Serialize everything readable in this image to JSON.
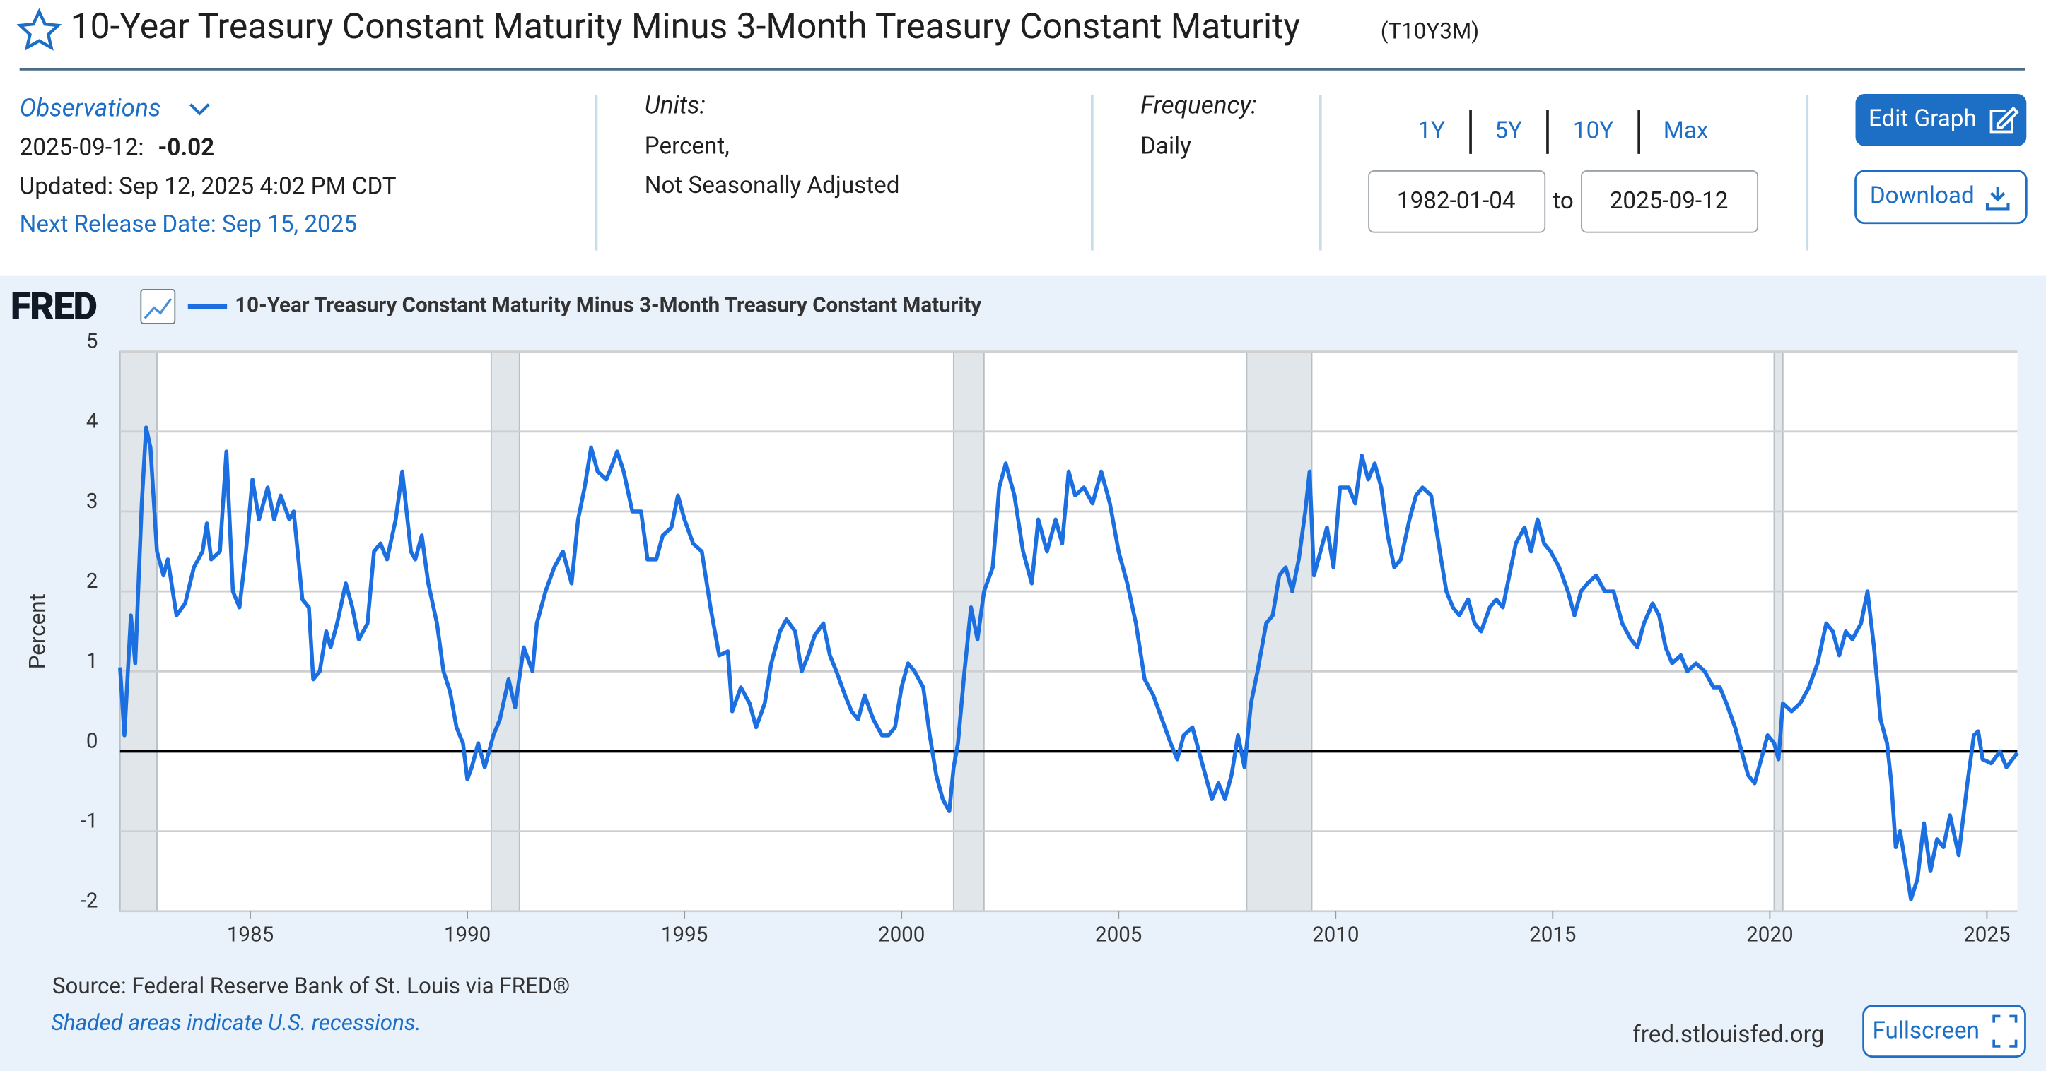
{
  "header": {
    "title": "10-Year Treasury Constant Maturity Minus 3-Month Treasury Constant Maturity",
    "series_id": "(T10Y3M)"
  },
  "observations": {
    "label": "Observations",
    "date": "2025-09-12:",
    "value": "-0.02",
    "updated": "Updated: Sep 12, 2025 4:02 PM CDT",
    "next_release": "Next Release Date: Sep 15, 2025"
  },
  "units": {
    "label": "Units:",
    "lines": [
      "Percent,",
      "Not Seasonally Adjusted"
    ]
  },
  "frequency": {
    "label": "Frequency:",
    "value": "Daily"
  },
  "range": {
    "buttons": [
      "1Y",
      "5Y",
      "10Y",
      "Max"
    ],
    "start": "1982-01-04",
    "to": "to",
    "end": "2025-09-12"
  },
  "actions": {
    "edit": "Edit Graph",
    "download": "Download",
    "fullscreen": "Fullscreen"
  },
  "footer": {
    "logo": "FRED",
    "source": "Source: Federal Reserve Bank of St. Louis via FRED®",
    "note": "Shaded areas indicate U.S. recessions.",
    "url": "fred.stlouisfed.org"
  },
  "chart_data": {
    "type": "line",
    "ylabel": "Percent",
    "xlim": [
      1982.0,
      2025.7
    ],
    "xticks": [
      1985,
      1990,
      1995,
      2000,
      2005,
      2010,
      2015,
      2020,
      2025
    ],
    "ylim": [
      -2,
      5
    ],
    "yticks": [
      -2,
      -1,
      0,
      1,
      2,
      3,
      4,
      5
    ],
    "grid": true,
    "zero_line": true,
    "recessions": [
      [
        1982.0,
        1982.85
      ],
      [
        1990.55,
        1991.2
      ],
      [
        2001.2,
        2001.9
      ],
      [
        2007.95,
        2009.45
      ],
      [
        2020.1,
        2020.3
      ]
    ],
    "recession_color": "#e1e6ea",
    "x": [
      1982.0,
      1982.1,
      1982.25,
      1982.35,
      1982.5,
      1982.6,
      1982.7,
      1982.85,
      1983.0,
      1983.1,
      1983.3,
      1983.5,
      1983.7,
      1983.9,
      1984.0,
      1984.1,
      1984.3,
      1984.45,
      1984.6,
      1984.75,
      1984.9,
      1985.05,
      1985.2,
      1985.4,
      1985.55,
      1985.7,
      1985.9,
      1986.0,
      1986.2,
      1986.35,
      1986.45,
      1986.6,
      1986.75,
      1986.85,
      1987.0,
      1987.2,
      1987.35,
      1987.5,
      1987.7,
      1987.85,
      1988.0,
      1988.15,
      1988.35,
      1988.5,
      1988.7,
      1988.8,
      1988.95,
      1989.1,
      1989.3,
      1989.45,
      1989.6,
      1989.75,
      1989.9,
      1990.0,
      1990.1,
      1990.25,
      1990.4,
      1990.6,
      1990.75,
      1990.95,
      1991.1,
      1991.3,
      1991.5,
      1991.6,
      1991.8,
      1992.0,
      1992.2,
      1992.4,
      1992.55,
      1992.7,
      1992.85,
      1993.0,
      1993.2,
      1993.35,
      1993.45,
      1993.6,
      1993.8,
      1994.0,
      1994.15,
      1994.35,
      1994.5,
      1994.7,
      1994.85,
      1995.0,
      1995.2,
      1995.4,
      1995.6,
      1995.8,
      1996.0,
      1996.1,
      1996.3,
      1996.5,
      1996.65,
      1996.85,
      1997.0,
      1997.2,
      1997.35,
      1997.55,
      1997.7,
      1997.85,
      1998.0,
      1998.2,
      1998.35,
      1998.5,
      1998.7,
      1998.85,
      1999.0,
      1999.15,
      1999.35,
      1999.55,
      1999.7,
      1999.85,
      2000.0,
      2000.15,
      2000.3,
      2000.5,
      2000.65,
      2000.8,
      2000.95,
      2001.1,
      2001.2,
      2001.3,
      2001.45,
      2001.6,
      2001.75,
      2001.9,
      2002.1,
      2002.25,
      2002.4,
      2002.6,
      2002.8,
      2003.0,
      2003.15,
      2003.35,
      2003.55,
      2003.7,
      2003.85,
      2004.0,
      2004.2,
      2004.4,
      2004.6,
      2004.8,
      2005.0,
      2005.2,
      2005.4,
      2005.6,
      2005.8,
      2006.0,
      2006.2,
      2006.35,
      2006.5,
      2006.7,
      2006.85,
      2007.0,
      2007.15,
      2007.3,
      2007.45,
      2007.6,
      2007.75,
      2007.9,
      2008.05,
      2008.2,
      2008.4,
      2008.55,
      2008.7,
      2008.85,
      2009.0,
      2009.15,
      2009.3,
      2009.4,
      2009.5,
      2009.65,
      2009.8,
      2009.95,
      2010.1,
      2010.3,
      2010.45,
      2010.6,
      2010.75,
      2010.9,
      2011.05,
      2011.2,
      2011.35,
      2011.5,
      2011.7,
      2011.85,
      2012.0,
      2012.2,
      2012.4,
      2012.55,
      2012.7,
      2012.85,
      2013.05,
      2013.2,
      2013.35,
      2013.55,
      2013.7,
      2013.85,
      2014.0,
      2014.15,
      2014.35,
      2014.5,
      2014.65,
      2014.8,
      2014.95,
      2015.15,
      2015.35,
      2015.5,
      2015.65,
      2015.8,
      2016.0,
      2016.2,
      2016.4,
      2016.6,
      2016.8,
      2016.95,
      2017.1,
      2017.3,
      2017.45,
      2017.6,
      2017.75,
      2017.95,
      2018.1,
      2018.3,
      2018.5,
      2018.7,
      2018.85,
      2019.0,
      2019.2,
      2019.35,
      2019.5,
      2019.65,
      2019.8,
      2019.95,
      2020.1,
      2020.2,
      2020.3,
      2020.5,
      2020.7,
      2020.9,
      2021.1,
      2021.3,
      2021.45,
      2021.6,
      2021.75,
      2021.9,
      2022.1,
      2022.25,
      2022.4,
      2022.55,
      2022.7,
      2022.8,
      2022.9,
      2023.0,
      2023.15,
      2023.25,
      2023.4,
      2023.55,
      2023.7,
      2023.85,
      2024.0,
      2024.15,
      2024.35,
      2024.55,
      2024.7,
      2024.8,
      2024.9,
      2025.1,
      2025.3,
      2025.45,
      2025.7
    ],
    "series": [
      {
        "name": "10-Year Treasury Constant Maturity Minus 3-Month Treasury Constant Maturity",
        "color": "#1b6fe0",
        "values": [
          1.05,
          0.2,
          1.7,
          1.1,
          3.1,
          4.05,
          3.8,
          2.5,
          2.2,
          2.4,
          1.7,
          1.85,
          2.3,
          2.5,
          2.85,
          2.4,
          2.5,
          3.75,
          2.0,
          1.8,
          2.5,
          3.4,
          2.9,
          3.3,
          2.9,
          3.2,
          2.9,
          3.0,
          1.9,
          1.8,
          0.9,
          1.0,
          1.5,
          1.3,
          1.6,
          2.1,
          1.8,
          1.4,
          1.6,
          2.5,
          2.6,
          2.4,
          2.9,
          3.5,
          2.5,
          2.4,
          2.7,
          2.1,
          1.6,
          1.0,
          0.75,
          0.3,
          0.1,
          -0.35,
          -0.2,
          0.1,
          -0.2,
          0.2,
          0.4,
          0.9,
          0.55,
          1.3,
          1.0,
          1.6,
          2.0,
          2.3,
          2.5,
          2.1,
          2.9,
          3.3,
          3.8,
          3.5,
          3.4,
          3.6,
          3.75,
          3.5,
          3.0,
          3.0,
          2.4,
          2.4,
          2.7,
          2.8,
          3.2,
          2.9,
          2.6,
          2.5,
          1.8,
          1.2,
          1.25,
          0.5,
          0.8,
          0.6,
          0.3,
          0.6,
          1.1,
          1.5,
          1.65,
          1.5,
          1.0,
          1.2,
          1.45,
          1.6,
          1.2,
          1.0,
          0.7,
          0.5,
          0.4,
          0.7,
          0.4,
          0.2,
          0.2,
          0.3,
          0.8,
          1.1,
          1.0,
          0.8,
          0.2,
          -0.3,
          -0.6,
          -0.75,
          -0.2,
          0.1,
          1.0,
          1.8,
          1.4,
          2.0,
          2.3,
          3.3,
          3.6,
          3.2,
          2.5,
          2.1,
          2.9,
          2.5,
          2.9,
          2.6,
          3.5,
          3.2,
          3.3,
          3.1,
          3.5,
          3.1,
          2.5,
          2.1,
          1.6,
          0.9,
          0.7,
          0.4,
          0.1,
          -0.1,
          0.2,
          0.3,
          0.0,
          -0.3,
          -0.6,
          -0.4,
          -0.6,
          -0.3,
          0.2,
          -0.2,
          0.6,
          1.0,
          1.6,
          1.7,
          2.2,
          2.3,
          2.0,
          2.4,
          3.0,
          3.5,
          2.2,
          2.5,
          2.8,
          2.3,
          3.3,
          3.3,
          3.1,
          3.7,
          3.4,
          3.6,
          3.3,
          2.7,
          2.3,
          2.4,
          2.9,
          3.2,
          3.3,
          3.2,
          2.5,
          2.0,
          1.8,
          1.7,
          1.9,
          1.6,
          1.5,
          1.8,
          1.9,
          1.8,
          2.2,
          2.6,
          2.8,
          2.5,
          2.9,
          2.6,
          2.5,
          2.3,
          2.0,
          1.7,
          2.0,
          2.1,
          2.2,
          2.0,
          2.0,
          1.6,
          1.4,
          1.3,
          1.6,
          1.85,
          1.7,
          1.3,
          1.1,
          1.2,
          1.0,
          1.1,
          1.0,
          0.8,
          0.8,
          0.6,
          0.3,
          0.0,
          -0.3,
          -0.4,
          -0.1,
          0.2,
          0.1,
          -0.1,
          0.6,
          0.5,
          0.6,
          0.8,
          1.1,
          1.6,
          1.5,
          1.2,
          1.5,
          1.4,
          1.6,
          2.0,
          1.3,
          0.4,
          0.1,
          -0.4,
          -1.2,
          -1.0,
          -1.5,
          -1.85,
          -1.6,
          -0.9,
          -1.5,
          -1.1,
          -1.2,
          -0.8,
          -1.3,
          -0.4,
          0.2,
          0.25,
          -0.1,
          -0.15,
          0.0,
          -0.2,
          -0.02
        ]
      }
    ]
  }
}
